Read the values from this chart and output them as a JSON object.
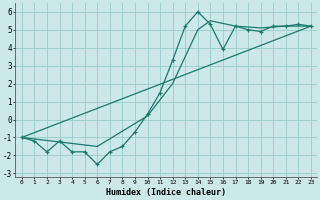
{
  "xlabel": "Humidex (Indice chaleur)",
  "background_color": "#cce8e8",
  "grid_color": "#99cccc",
  "line_color": "#1a7a6e",
  "xlim": [
    -0.5,
    23.5
  ],
  "ylim": [
    -3.2,
    6.5
  ],
  "xticks": [
    0,
    1,
    2,
    3,
    4,
    5,
    6,
    7,
    8,
    9,
    10,
    11,
    12,
    13,
    14,
    15,
    16,
    17,
    18,
    19,
    20,
    21,
    22,
    23
  ],
  "yticks": [
    -3,
    -2,
    -1,
    0,
    1,
    2,
    3,
    4,
    5,
    6
  ],
  "main_x": [
    0,
    1,
    2,
    3,
    4,
    5,
    6,
    7,
    8,
    9,
    10,
    11,
    12,
    13,
    14,
    15,
    16,
    17,
    18,
    19,
    20,
    21,
    22,
    23
  ],
  "main_y": [
    -1.0,
    -1.2,
    -1.8,
    -1.2,
    -1.8,
    -1.8,
    -2.5,
    -1.8,
    -1.5,
    -0.7,
    0.3,
    1.5,
    3.3,
    5.2,
    6.0,
    5.3,
    3.9,
    5.2,
    5.0,
    4.9,
    5.2,
    5.2,
    5.3,
    5.2
  ],
  "line2_x": [
    0,
    23
  ],
  "line2_y": [
    -1.0,
    5.2
  ],
  "line3_x": [
    0,
    6,
    10,
    12,
    14,
    15,
    17,
    19,
    21,
    23
  ],
  "line3_y": [
    -1.0,
    -1.5,
    0.2,
    2.0,
    5.0,
    5.5,
    5.2,
    5.1,
    5.2,
    5.2
  ],
  "xtick_labels": [
    "0",
    "1",
    "2",
    "3",
    "4",
    "5",
    "6",
    "7",
    "8",
    "9",
    "10",
    "11",
    "12",
    "13",
    "14",
    "15",
    "16",
    "17",
    "18",
    "19",
    "20",
    "21",
    "22",
    "23"
  ],
  "ytick_labels": [
    "-3",
    "-2",
    "-1",
    "0",
    "1",
    "2",
    "3",
    "4",
    "5",
    "6"
  ]
}
